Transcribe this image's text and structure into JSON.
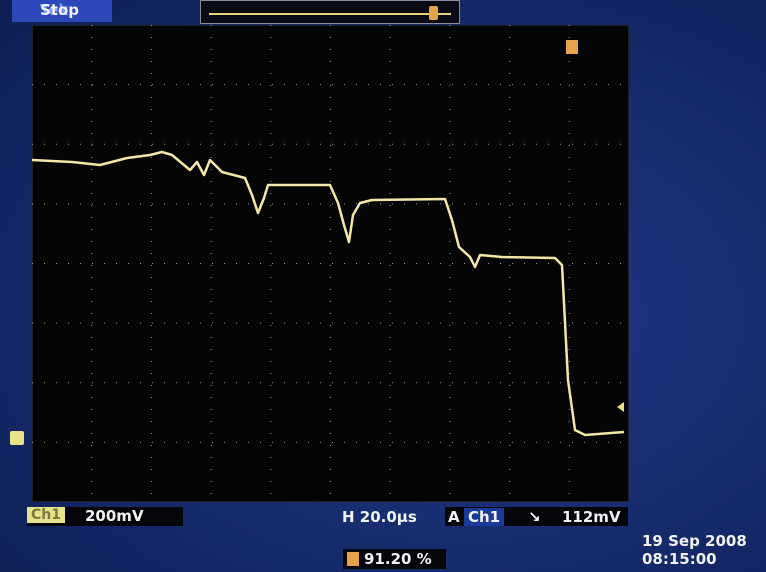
{
  "brand": "Tek",
  "status": "Stop",
  "channel": {
    "name": "Ch1",
    "scale": "200mV"
  },
  "horizontal": "H 20.0µs",
  "trigger": {
    "mode": "A",
    "source": "Ch1",
    "level": "112mV"
  },
  "trigger_position": "91.20 %",
  "date": "19 Sep  2008",
  "time": "08:15:00"
}
